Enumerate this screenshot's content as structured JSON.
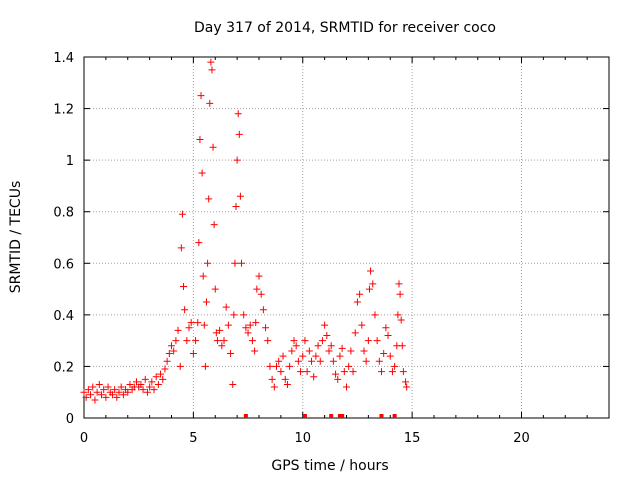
{
  "chart_data": {
    "type": "scatter",
    "title": "Day 317 of 2014, SRMTID for receiver coco",
    "xlabel": "GPS time / hours",
    "ylabel": "SRMTID / TECUs",
    "xlim": [
      0,
      24
    ],
    "ylim": [
      0,
      1.4
    ],
    "xticks": [
      0,
      5,
      10,
      15,
      20
    ],
    "xtick_labels": [
      "0",
      "5",
      "10",
      "15",
      "20"
    ],
    "yticks": [
      0,
      0.2,
      0.4,
      0.6,
      0.8,
      1.0,
      1.2,
      1.4
    ],
    "ytick_labels": [
      "0",
      "0.2",
      "0.4",
      "0.6",
      "0.8",
      "1",
      "1.2",
      "1.4"
    ],
    "grid": true,
    "marker": "+",
    "color": "#ff0000",
    "series": [
      {
        "name": "SRMTID",
        "points": [
          [
            0.0,
            0.1
          ],
          [
            0.1,
            0.08
          ],
          [
            0.2,
            0.11
          ],
          [
            0.3,
            0.09
          ],
          [
            0.4,
            0.12
          ],
          [
            0.5,
            0.07
          ],
          [
            0.6,
            0.1
          ],
          [
            0.7,
            0.13
          ],
          [
            0.8,
            0.09
          ],
          [
            0.9,
            0.11
          ],
          [
            1.0,
            0.08
          ],
          [
            1.1,
            0.12
          ],
          [
            1.2,
            0.1
          ],
          [
            1.3,
            0.09
          ],
          [
            1.4,
            0.11
          ],
          [
            1.5,
            0.08
          ],
          [
            1.6,
            0.1
          ],
          [
            1.7,
            0.12
          ],
          [
            1.8,
            0.09
          ],
          [
            1.9,
            0.11
          ],
          [
            2.0,
            0.1
          ],
          [
            2.1,
            0.13
          ],
          [
            2.2,
            0.11
          ],
          [
            2.3,
            0.12
          ],
          [
            2.4,
            0.14
          ],
          [
            2.5,
            0.12
          ],
          [
            2.6,
            0.13
          ],
          [
            2.7,
            0.11
          ],
          [
            2.8,
            0.15
          ],
          [
            2.9,
            0.1
          ],
          [
            3.0,
            0.12
          ],
          [
            3.1,
            0.14
          ],
          [
            3.2,
            0.11
          ],
          [
            3.3,
            0.16
          ],
          [
            3.4,
            0.13
          ],
          [
            3.5,
            0.17
          ],
          [
            3.6,
            0.15
          ],
          [
            3.7,
            0.19
          ],
          [
            3.8,
            0.22
          ],
          [
            3.9,
            0.25
          ],
          [
            4.0,
            0.28
          ],
          [
            4.1,
            0.26
          ],
          [
            4.2,
            0.3
          ],
          [
            4.3,
            0.34
          ],
          [
            4.4,
            0.2
          ],
          [
            4.45,
            0.66
          ],
          [
            4.5,
            0.79
          ],
          [
            4.55,
            0.51
          ],
          [
            4.6,
            0.42
          ],
          [
            4.7,
            0.3
          ],
          [
            4.8,
            0.35
          ],
          [
            4.9,
            0.37
          ],
          [
            5.0,
            0.25
          ],
          [
            5.1,
            0.3
          ],
          [
            5.2,
            0.37
          ],
          [
            5.25,
            0.68
          ],
          [
            5.3,
            1.08
          ],
          [
            5.35,
            1.25
          ],
          [
            5.4,
            0.95
          ],
          [
            5.45,
            0.55
          ],
          [
            5.5,
            0.36
          ],
          [
            5.55,
            0.2
          ],
          [
            5.6,
            0.45
          ],
          [
            5.65,
            0.6
          ],
          [
            5.7,
            0.85
          ],
          [
            5.75,
            1.22
          ],
          [
            5.8,
            1.38
          ],
          [
            5.85,
            1.35
          ],
          [
            5.9,
            1.05
          ],
          [
            5.95,
            0.75
          ],
          [
            6.0,
            0.5
          ],
          [
            6.05,
            0.33
          ],
          [
            6.1,
            0.3
          ],
          [
            6.2,
            0.34
          ],
          [
            6.3,
            0.28
          ],
          [
            6.4,
            0.3
          ],
          [
            6.5,
            0.43
          ],
          [
            6.6,
            0.36
          ],
          [
            6.7,
            0.25
          ],
          [
            6.8,
            0.13
          ],
          [
            6.85,
            0.4
          ],
          [
            6.9,
            0.6
          ],
          [
            6.95,
            0.82
          ],
          [
            7.0,
            1.0
          ],
          [
            7.05,
            1.18
          ],
          [
            7.1,
            1.1
          ],
          [
            7.15,
            0.86
          ],
          [
            7.2,
            0.6
          ],
          [
            7.3,
            0.4
          ],
          [
            7.4,
            0.35
          ],
          [
            7.5,
            0.33
          ],
          [
            7.6,
            0.36
          ],
          [
            7.7,
            0.3
          ],
          [
            7.8,
            0.26
          ],
          [
            7.85,
            0.37
          ],
          [
            7.9,
            0.5
          ],
          [
            8.0,
            0.55
          ],
          [
            8.1,
            0.48
          ],
          [
            8.2,
            0.42
          ],
          [
            8.3,
            0.35
          ],
          [
            8.4,
            0.3
          ],
          [
            8.5,
            0.2
          ],
          [
            8.6,
            0.15
          ],
          [
            8.7,
            0.12
          ],
          [
            8.8,
            0.2
          ],
          [
            8.9,
            0.22
          ],
          [
            9.0,
            0.18
          ],
          [
            9.1,
            0.24
          ],
          [
            9.2,
            0.15
          ],
          [
            9.3,
            0.13
          ],
          [
            9.4,
            0.2
          ],
          [
            9.5,
            0.26
          ],
          [
            9.6,
            0.3
          ],
          [
            9.7,
            0.28
          ],
          [
            9.8,
            0.22
          ],
          [
            9.9,
            0.18
          ],
          [
            10.0,
            0.24
          ],
          [
            10.1,
            0.3
          ],
          [
            10.2,
            0.18
          ],
          [
            10.3,
            0.26
          ],
          [
            10.4,
            0.22
          ],
          [
            10.5,
            0.16
          ],
          [
            10.6,
            0.24
          ],
          [
            10.7,
            0.28
          ],
          [
            10.8,
            0.22
          ],
          [
            10.9,
            0.3
          ],
          [
            11.0,
            0.36
          ],
          [
            11.1,
            0.32
          ],
          [
            11.2,
            0.26
          ],
          [
            11.3,
            0.28
          ],
          [
            11.4,
            0.22
          ],
          [
            11.5,
            0.17
          ],
          [
            11.6,
            0.15
          ],
          [
            11.7,
            0.24
          ],
          [
            11.8,
            0.27
          ],
          [
            11.9,
            0.18
          ],
          [
            12.0,
            0.12
          ],
          [
            12.1,
            0.2
          ],
          [
            12.2,
            0.26
          ],
          [
            12.3,
            0.18
          ],
          [
            12.4,
            0.33
          ],
          [
            12.5,
            0.45
          ],
          [
            12.6,
            0.48
          ],
          [
            12.7,
            0.36
          ],
          [
            12.8,
            0.26
          ],
          [
            12.9,
            0.22
          ],
          [
            13.0,
            0.3
          ],
          [
            13.05,
            0.5
          ],
          [
            13.1,
            0.57
          ],
          [
            13.2,
            0.52
          ],
          [
            13.3,
            0.4
          ],
          [
            13.4,
            0.3
          ],
          [
            13.5,
            0.22
          ],
          [
            13.6,
            0.18
          ],
          [
            13.7,
            0.25
          ],
          [
            13.8,
            0.35
          ],
          [
            13.9,
            0.32
          ],
          [
            14.0,
            0.24
          ],
          [
            14.1,
            0.18
          ],
          [
            14.2,
            0.2
          ],
          [
            14.3,
            0.28
          ],
          [
            14.35,
            0.4
          ],
          [
            14.4,
            0.52
          ],
          [
            14.45,
            0.48
          ],
          [
            14.5,
            0.38
          ],
          [
            14.55,
            0.28
          ],
          [
            14.6,
            0.18
          ],
          [
            14.7,
            0.14
          ],
          [
            14.75,
            0.12
          ]
        ]
      }
    ],
    "zero_markers_x": [
      7.4,
      10.1,
      11.3,
      11.7,
      11.8,
      13.6,
      14.2
    ]
  }
}
